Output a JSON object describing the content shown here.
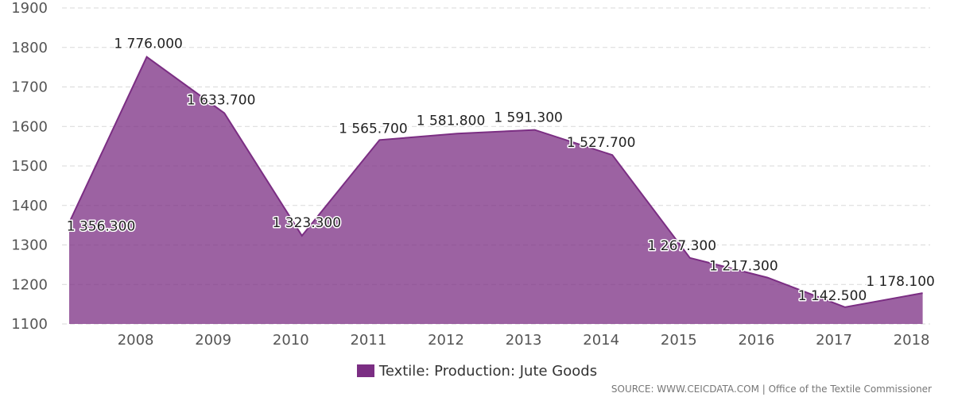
{
  "chart_data": {
    "type": "area",
    "x": [
      "2007",
      "2008",
      "2009",
      "2010",
      "2011",
      "2012",
      "2013",
      "2014",
      "2015",
      "2016",
      "2017",
      "2018"
    ],
    "x_tick_labels": [
      "2008",
      "2009",
      "2010",
      "2011",
      "2012",
      "2013",
      "2014",
      "2015",
      "2016",
      "2017",
      "2018"
    ],
    "series": [
      {
        "name": "Textile: Production: Jute Goods",
        "color": "#7b2e83",
        "values": [
          1356.3,
          1776.0,
          1633.7,
          1323.3,
          1565.7,
          1581.8,
          1591.3,
          1527.7,
          1267.3,
          1217.3,
          1142.5,
          1178.1
        ],
        "labels": [
          "1 356.300",
          "1 776.000",
          "1 633.700",
          "1 323.300",
          "1 565.700",
          "1 581.800",
          "1 591.300",
          "1 527.700",
          "1 267.300",
          "1 217.300",
          "1 142.500",
          "1 178.100"
        ]
      }
    ],
    "y_ticks": [
      1100,
      1200,
      1300,
      1400,
      1500,
      1600,
      1700,
      1800,
      1900
    ],
    "ylim": [
      1100,
      1900
    ],
    "grid": true,
    "legend_position": "bottom",
    "title": "",
    "xlabel": "",
    "ylabel": ""
  },
  "legend": {
    "label": "Textile: Production: Jute Goods",
    "color": "#7b2e83"
  },
  "source": "SOURCE: WWW.CEICDATA.COM | Office of the Textile Commissioner"
}
